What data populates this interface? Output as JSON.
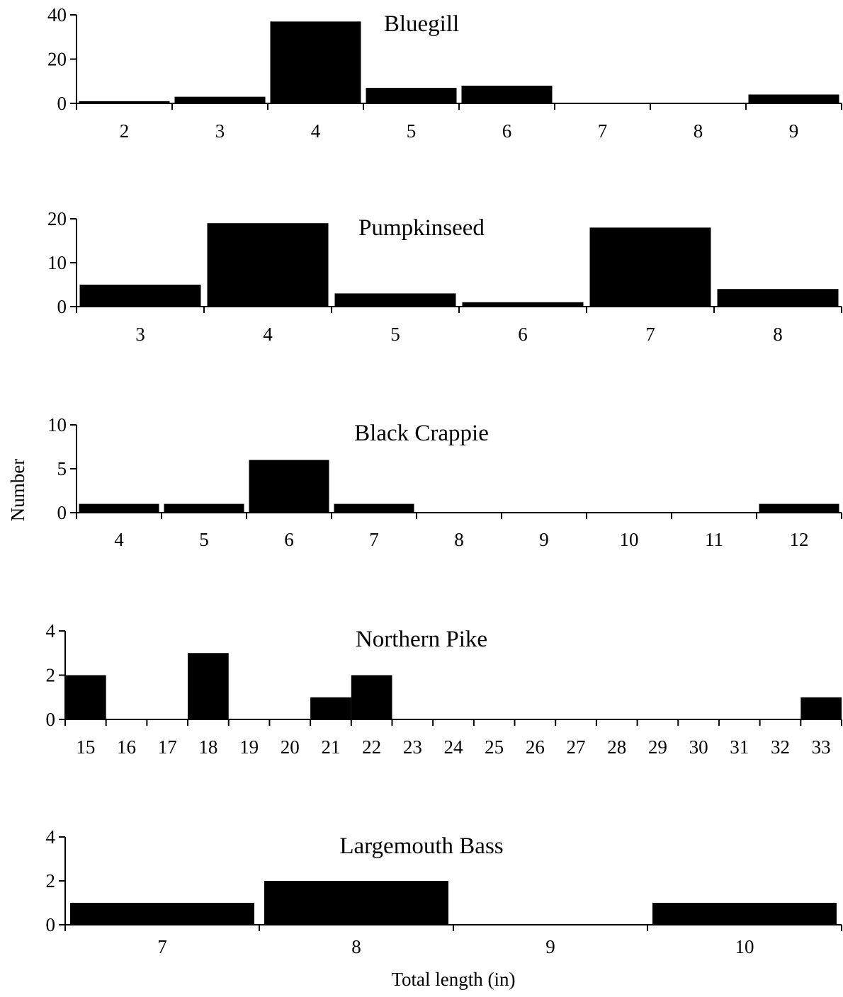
{
  "figure": {
    "ylabel": "Number",
    "xlabel": "Total length (in)"
  },
  "chart_data": [
    {
      "type": "bar",
      "title": "Bluegill",
      "categories": [
        "2",
        "3",
        "4",
        "5",
        "6",
        "7",
        "8",
        "9"
      ],
      "values": [
        1,
        3,
        37,
        7,
        8,
        0,
        0,
        4
      ],
      "yticks": [
        "0",
        "20",
        "40"
      ],
      "ylim": [
        0,
        40
      ]
    },
    {
      "type": "bar",
      "title": "Pumpkinseed",
      "categories": [
        "3",
        "4",
        "5",
        "6",
        "7",
        "8"
      ],
      "values": [
        5,
        19,
        3,
        1,
        18,
        4
      ],
      "yticks": [
        "0",
        "10",
        "20"
      ],
      "ylim": [
        0,
        20
      ]
    },
    {
      "type": "bar",
      "title": "Black Crappie",
      "categories": [
        "4",
        "5",
        "6",
        "7",
        "8",
        "9",
        "10",
        "11",
        "12"
      ],
      "values": [
        1,
        1,
        6,
        1,
        0,
        0,
        0,
        0,
        1
      ],
      "yticks": [
        "0",
        "5",
        "10"
      ],
      "ylim": [
        0,
        10
      ]
    },
    {
      "type": "bar",
      "title": "Northern Pike",
      "categories": [
        "15",
        "16",
        "17",
        "18",
        "19",
        "20",
        "21",
        "22",
        "23",
        "24",
        "25",
        "26",
        "27",
        "28",
        "29",
        "30",
        "31",
        "32",
        "33"
      ],
      "values": [
        2,
        0,
        0,
        3,
        0,
        0,
        1,
        2,
        0,
        0,
        0,
        0,
        0,
        0,
        0,
        0,
        0,
        0,
        1
      ],
      "yticks": [
        "0",
        "2",
        "4"
      ],
      "ylim": [
        0,
        4
      ]
    },
    {
      "type": "bar",
      "title": "Largemouth Bass",
      "categories": [
        "7",
        "8",
        "9",
        "10"
      ],
      "values": [
        1,
        2,
        0,
        1
      ],
      "yticks": [
        "0",
        "2",
        "4"
      ],
      "ylim": [
        0,
        4
      ]
    }
  ]
}
